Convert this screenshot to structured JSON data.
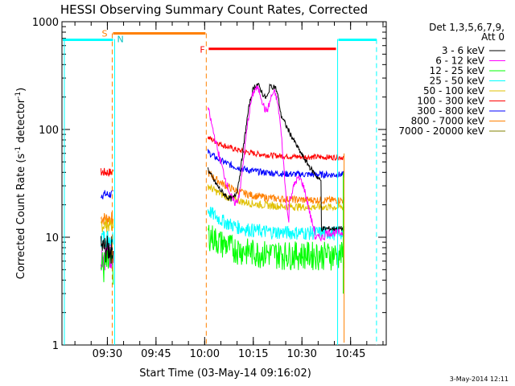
{
  "chart_data": {
    "type": "line",
    "title": "HESSI Observing Summary Count Rates, Corrected",
    "xlabel": "Start Time (03-May-14 09:16:02)",
    "ylabel_main": "Corrected Count Rate (s",
    "ylabel_sup1": "-1",
    "ylabel_mid": " detector",
    "ylabel_sup2": "-1",
    "ylabel_end": ")",
    "y_scale": "log",
    "ylim": [
      1,
      1000
    ],
    "xlim_minutes": [
      "09:16",
      "10:56"
    ],
    "x_ticks": [
      {
        "t": "09:30",
        "label": "09:30"
      },
      {
        "t": "09:45",
        "label": "09:45"
      },
      {
        "t": "10:00",
        "label": "10:00"
      },
      {
        "t": "10:15",
        "label": "10:15"
      },
      {
        "t": "10:30",
        "label": "10:30"
      },
      {
        "t": "10:45",
        "label": "10:45"
      }
    ],
    "y_ticks": [
      {
        "v": 1,
        "label": "1"
      },
      {
        "v": 10,
        "label": "10"
      },
      {
        "v": 100,
        "label": "100"
      },
      {
        "v": 1000,
        "label": "1000"
      }
    ],
    "legend_placement": "right",
    "legend_header": [
      "Det 1,3,5,6,7,9,",
      "Att 0"
    ],
    "series": [
      {
        "name": "3 - 6 keV",
        "color": "#000000"
      },
      {
        "name": "6 - 12 keV",
        "color": "#ff00ff"
      },
      {
        "name": "12 - 25 keV",
        "color": "#00ff00"
      },
      {
        "name": "25 - 50 keV",
        "color": "#00ffff"
      },
      {
        "name": "50 - 100 keV",
        "color": "#e0c000"
      },
      {
        "name": "100 - 300 keV",
        "color": "#ff0000"
      },
      {
        "name": "300 - 800 keV",
        "color": "#0000ff"
      },
      {
        "name": "800 - 7000 keV",
        "color": "#ff8000"
      },
      {
        "name": "7000 - 20000 keV",
        "color": "#808000"
      }
    ],
    "flags": [
      {
        "label": "S",
        "color": "#ff8000"
      },
      {
        "label": "N",
        "color": "#00c0c0"
      },
      {
        "label": "F",
        "color": "#ff0000"
      }
    ],
    "footer_date": "3-May-2014 12:11"
  }
}
